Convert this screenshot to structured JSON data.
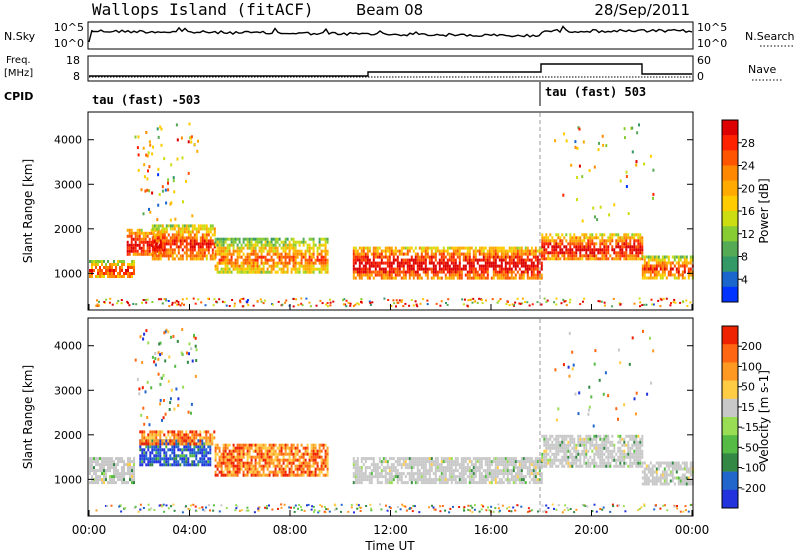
{
  "header": {
    "site": "Wallops Island (fitACF)",
    "beam": "Beam 08",
    "date": "28/Sep/2011"
  },
  "panels": {
    "nsky_label": "N.Sky",
    "nsearch_label": "N.Search",
    "freq_label_1": "Freq.",
    "freq_label_2": "[MHz]",
    "nave_label": "Nave",
    "cpid_label": "CPID",
    "nsky_ticks": [
      "10^5",
      "10^0"
    ],
    "nsearch_ticks": [
      "10^5",
      "10^0"
    ],
    "freq_ticks": [
      "18",
      "8"
    ],
    "nave_ticks": [
      "60",
      "0"
    ],
    "cpid_segments": [
      {
        "label": "tau (fast) -503",
        "start_hour": 0
      },
      {
        "label": "tau (fast) 503",
        "start_hour": 18
      }
    ]
  },
  "chart_data": [
    {
      "type": "heatmap",
      "name": "power",
      "title": "",
      "xlabel": "",
      "ylabel": "Slant Range [km]",
      "xlim_hours": [
        0,
        24
      ],
      "ylim_km": [
        200,
        4600
      ],
      "yticks": [
        "1000",
        "2000",
        "3000",
        "4000"
      ],
      "colorbar": {
        "label": "Power [dB]",
        "ticks": [
          "4",
          "8",
          "12",
          "16",
          "20",
          "24",
          "28"
        ],
        "colors": [
          "#0033ff",
          "#1a66cc",
          "#339966",
          "#55aa55",
          "#88cc33",
          "#ccdd11",
          "#ffcc00",
          "#ffaa00",
          "#ff8800",
          "#ff5500",
          "#ff2200",
          "#dd0000"
        ]
      },
      "echo_bands": [
        {
          "t0": 0.0,
          "t1": 1.8,
          "r0": 900,
          "r1": 1300,
          "level": 0.45
        },
        {
          "t0": 1.5,
          "t1": 3.0,
          "r0": 1400,
          "r1": 2000,
          "level": 0.6
        },
        {
          "t0": 2.5,
          "t1": 5.0,
          "r0": 1300,
          "r1": 2100,
          "level": 0.5
        },
        {
          "t0": 5.0,
          "t1": 9.5,
          "r0": 1000,
          "r1": 1800,
          "level": 0.35
        },
        {
          "t0": 10.5,
          "t1": 18.0,
          "r0": 900,
          "r1": 1600,
          "level": 0.6
        },
        {
          "t0": 18.0,
          "t1": 22.0,
          "r0": 1300,
          "r1": 1900,
          "level": 0.55
        },
        {
          "t0": 22.0,
          "t1": 24.0,
          "r0": 900,
          "r1": 1400,
          "level": 0.45
        }
      ]
    },
    {
      "type": "heatmap",
      "name": "velocity",
      "title": "",
      "xlabel": "Time UT",
      "ylabel": "Slant Range [km]",
      "xlim_hours": [
        0,
        24
      ],
      "ylim_km": [
        200,
        4600
      ],
      "yticks": [
        "1000",
        "2000",
        "3000",
        "4000"
      ],
      "xticks": [
        "00:00",
        "04:00",
        "08:00",
        "12:00",
        "16:00",
        "20:00",
        "00:00"
      ],
      "colorbar": {
        "label": "Velocity [m s-1]",
        "ticks": [
          "200",
          "100",
          "50",
          "15",
          "-15",
          "-50",
          "-100",
          "-200"
        ],
        "colors": [
          "#2233dd",
          "#2266cc",
          "#338844",
          "#55bb44",
          "#99dd55",
          "#c8c8c8",
          "#ffcc44",
          "#ff9922",
          "#ff6611",
          "#ee2200"
        ]
      },
      "echo_bands": [
        {
          "t0": 0.0,
          "t1": 1.8,
          "r0": 900,
          "r1": 1500,
          "kind": "ground"
        },
        {
          "t0": 2.0,
          "t1": 4.8,
          "r0": 1300,
          "r1": 1900,
          "kind": "blue"
        },
        {
          "t0": 2.0,
          "t1": 5.0,
          "r0": 1800,
          "r1": 2100,
          "kind": "orange"
        },
        {
          "t0": 5.0,
          "t1": 9.5,
          "r0": 1100,
          "r1": 1800,
          "kind": "orange"
        },
        {
          "t0": 10.5,
          "t1": 18.0,
          "r0": 900,
          "r1": 1500,
          "kind": "ground"
        },
        {
          "t0": 18.0,
          "t1": 22.0,
          "r0": 1300,
          "r1": 2000,
          "kind": "ground"
        },
        {
          "t0": 22.0,
          "t1": 24.0,
          "r0": 900,
          "r1": 1400,
          "kind": "ground"
        }
      ]
    }
  ]
}
